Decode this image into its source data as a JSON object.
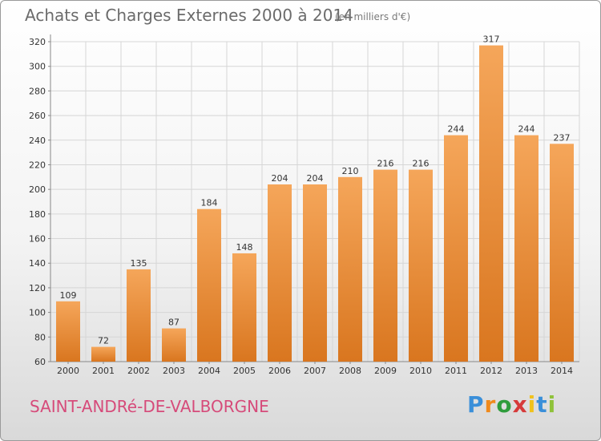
{
  "header": {
    "title": "Achats et Charges Externes 2000 à 2014",
    "subtitle": "(en milliers d'€)"
  },
  "footer": {
    "commune": "SAINT-ANDRé-DE-VALBORGNE",
    "logo_text": "Proxiti",
    "logo_letters": [
      {
        "ch": "P",
        "color": "#3a8fd9"
      },
      {
        "ch": "r",
        "color": "#f08a1c"
      },
      {
        "ch": "o",
        "color": "#2f9c3c"
      },
      {
        "ch": "x",
        "color": "#d63a3a"
      },
      {
        "ch": "i",
        "color": "#f0c21c"
      },
      {
        "ch": "t",
        "color": "#3a8fd9"
      },
      {
        "ch": "i",
        "color": "#8fc23a"
      }
    ]
  },
  "colors": {
    "bar_top": "#f5a65a",
    "bar_bottom": "#d9761f",
    "grid": "#d6d6d6",
    "tick_text": "#333333",
    "commune": "#d64b7a"
  },
  "chart_data": {
    "type": "bar",
    "title": "Achats et Charges Externes 2000 à 2014",
    "subtitle": "(en milliers d'€)",
    "categories": [
      "2000",
      "2001",
      "2002",
      "2003",
      "2004",
      "2005",
      "2006",
      "2007",
      "2008",
      "2009",
      "2010",
      "2011",
      "2012",
      "2013",
      "2014"
    ],
    "values": [
      109,
      72,
      135,
      87,
      184,
      148,
      204,
      204,
      210,
      216,
      216,
      244,
      317,
      244,
      237
    ],
    "ylim": [
      60,
      320
    ],
    "yticks": [
      60,
      80,
      100,
      120,
      140,
      160,
      180,
      200,
      220,
      240,
      260,
      280,
      300,
      320
    ],
    "grid": true,
    "xlabel": "",
    "ylabel": ""
  }
}
